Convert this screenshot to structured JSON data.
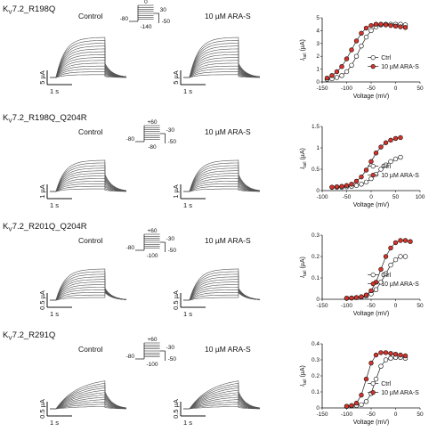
{
  "colors": {
    "ctrl_fill": "#ffffff",
    "ara_fill": "#d8322a",
    "trace": "#555555",
    "axis": "#111111",
    "fit": "#222222"
  },
  "panels": [
    {
      "title": "K",
      "title_sub": "V",
      "title_rest": "7.2_R198Q",
      "control_label": "Control",
      "drug_label": "10 µM ARA-S",
      "protocol": {
        "top": "0",
        "top2": "30",
        "left": "-80",
        "right": "-50",
        "bottom": "-140"
      },
      "scalebar_current": "5 µA",
      "scalebar_current_drug": "5 µA",
      "scalebar_time": "1 s",
      "scalebar_time_drug": "1 s",
      "n_traces": 14
    },
    {
      "title": "K",
      "title_sub": "V",
      "title_rest": "7.2_R198Q_Q204R",
      "control_label": "Control",
      "drug_label": "10 µM ARA-S",
      "protocol": {
        "top": "+60",
        "top2": "-30",
        "left": "-80",
        "right": "-50",
        "bottom": "-80"
      },
      "scalebar_current": "1 µA",
      "scalebar_current_drug": "1 µA",
      "scalebar_time": "1 s",
      "scalebar_time_drug": "1 s",
      "n_traces": 12
    },
    {
      "title": "K",
      "title_sub": "V",
      "title_rest": "7.2_R201Q_Q204R",
      "control_label": "Control",
      "drug_label": "10 µM ARA-S",
      "protocol": {
        "top": "+60",
        "top2": "-30",
        "left": "-80",
        "right": "-50",
        "bottom": "-100"
      },
      "scalebar_current": "0.5 µA",
      "scalebar_current_drug": "0.5 µA",
      "scalebar_time": "1 s",
      "scalebar_time_drug": "1 s",
      "n_traces": 12
    },
    {
      "title": "K",
      "title_sub": "V",
      "title_rest": "7.2_R291Q",
      "control_label": "Control",
      "drug_label": "10 µM ARA-S",
      "protocol": {
        "top": "+60",
        "top2": "-30",
        "left": "-80",
        "right": "-50",
        "bottom": "-100"
      },
      "scalebar_current": "0.5 µA",
      "scalebar_current_drug": "0.5 µA",
      "scalebar_time": "1 s",
      "scalebar_time_drug": "1 s",
      "n_traces": 12
    }
  ],
  "chart_data": [
    {
      "type": "scatter",
      "ylabel": "I_tail (µA)",
      "xlabel": "Voltage (mV)",
      "xlim": [
        -150,
        50
      ],
      "ylim": [
        0,
        5
      ],
      "xticks": [
        -150,
        -100,
        -50,
        0,
        50
      ],
      "yticks": [
        0,
        1,
        2,
        3,
        4,
        5
      ],
      "legend": "bottom-right",
      "series": [
        {
          "name": "Ctrl",
          "x": [
            -140,
            -130,
            -120,
            -110,
            -100,
            -90,
            -80,
            -70,
            -60,
            -50,
            -40,
            -30,
            -20,
            -10,
            0,
            10,
            20
          ],
          "y": [
            0.2,
            0.25,
            0.35,
            0.5,
            0.8,
            1.3,
            2.0,
            2.8,
            3.5,
            4.0,
            4.3,
            4.45,
            4.5,
            4.5,
            4.5,
            4.5,
            4.45
          ]
        },
        {
          "name": "10 µM ARA-S",
          "x": [
            -140,
            -130,
            -120,
            -110,
            -100,
            -90,
            -80,
            -70,
            -60,
            -50,
            -40,
            -30,
            -20,
            -10,
            0,
            10,
            20
          ],
          "y": [
            0.3,
            0.5,
            0.8,
            1.2,
            1.8,
            2.5,
            3.2,
            3.8,
            4.2,
            4.4,
            4.5,
            4.5,
            4.45,
            4.4,
            4.35,
            4.3,
            4.25
          ]
        }
      ]
    },
    {
      "type": "scatter",
      "ylabel": "I_tail (µA)",
      "xlabel": "Voltage (mV)",
      "xlim": [
        -100,
        100
      ],
      "ylim": [
        0,
        1.5
      ],
      "xticks": [
        -100,
        -50,
        0,
        50,
        100
      ],
      "yticks": [
        0,
        0.5,
        1.0,
        1.5
      ],
      "legend": "bottom-right",
      "series": [
        {
          "name": "Ctrl",
          "x": [
            -80,
            -70,
            -60,
            -50,
            -40,
            -30,
            -20,
            -10,
            0,
            10,
            20,
            30,
            40,
            50,
            60
          ],
          "y": [
            0.08,
            0.08,
            0.08,
            0.09,
            0.1,
            0.12,
            0.15,
            0.2,
            0.28,
            0.38,
            0.5,
            0.6,
            0.68,
            0.74,
            0.78
          ]
        },
        {
          "name": "10 µM ARA-S",
          "x": [
            -80,
            -70,
            -60,
            -50,
            -40,
            -30,
            -20,
            -10,
            0,
            10,
            20,
            30,
            40,
            50,
            60
          ],
          "y": [
            0.08,
            0.09,
            0.1,
            0.12,
            0.15,
            0.22,
            0.32,
            0.48,
            0.68,
            0.88,
            1.02,
            1.12,
            1.18,
            1.22,
            1.24
          ]
        }
      ]
    },
    {
      "type": "scatter",
      "ylabel": "I_tail (µA)",
      "xlabel": "Voltage (mV)",
      "xlim": [
        -150,
        50
      ],
      "ylim": [
        0,
        0.3
      ],
      "xticks": [
        -150,
        -100,
        -50,
        0,
        50
      ],
      "yticks": [
        0,
        0.1,
        0.2,
        0.3
      ],
      "legend": "bottom-right",
      "series": [
        {
          "name": "Ctrl",
          "x": [
            -100,
            -90,
            -80,
            -70,
            -60,
            -50,
            -40,
            -30,
            -20,
            -10,
            0,
            10,
            20
          ],
          "y": [
            0.005,
            0.006,
            0.008,
            0.01,
            0.015,
            0.025,
            0.045,
            0.08,
            0.12,
            0.16,
            0.185,
            0.2,
            0.2
          ]
        },
        {
          "name": "10 µM ARA-S",
          "x": [
            -100,
            -90,
            -80,
            -70,
            -60,
            -50,
            -40,
            -30,
            -20,
            -10,
            0,
            10,
            20,
            30
          ],
          "y": [
            0.005,
            0.006,
            0.008,
            0.012,
            0.02,
            0.04,
            0.08,
            0.14,
            0.2,
            0.24,
            0.265,
            0.275,
            0.275,
            0.27
          ]
        }
      ]
    },
    {
      "type": "scatter",
      "ylabel": "I_tail (µA)",
      "xlabel": "Voltage (mV)",
      "xlim": [
        -150,
        50
      ],
      "ylim": [
        0,
        0.4
      ],
      "xticks": [
        -150,
        -100,
        -50,
        0,
        50
      ],
      "yticks": [
        0,
        0.1,
        0.2,
        0.3,
        0.4
      ],
      "legend": "bottom-right",
      "series": [
        {
          "name": "Ctrl",
          "x": [
            -100,
            -90,
            -80,
            -70,
            -60,
            -50,
            -40,
            -30,
            -20,
            -10,
            0,
            10,
            20
          ],
          "y": [
            0.01,
            0.012,
            0.015,
            0.02,
            0.04,
            0.09,
            0.18,
            0.26,
            0.3,
            0.31,
            0.315,
            0.315,
            0.31
          ]
        },
        {
          "name": "10 µM ARA-S",
          "x": [
            -100,
            -90,
            -80,
            -70,
            -60,
            -50,
            -40,
            -30,
            -20,
            -10,
            0,
            10,
            20
          ],
          "y": [
            0.01,
            0.015,
            0.03,
            0.08,
            0.18,
            0.28,
            0.33,
            0.345,
            0.345,
            0.34,
            0.335,
            0.33,
            0.325
          ]
        }
      ]
    }
  ]
}
